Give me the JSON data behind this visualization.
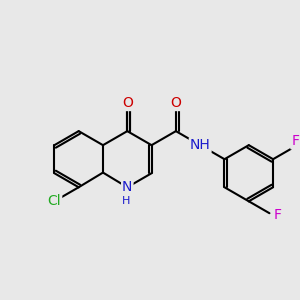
{
  "background_color": "#e8e8e8",
  "bond_color": "#000000",
  "bond_width": 1.5,
  "atom_colors": {
    "C": "#000000",
    "N": "#1a1acc",
    "O": "#cc0000",
    "F": "#cc00cc",
    "Cl": "#22aa22",
    "H": "#1a1acc"
  },
  "font_size": 9,
  "fig_size": [
    3.0,
    3.0
  ],
  "dpi": 100
}
